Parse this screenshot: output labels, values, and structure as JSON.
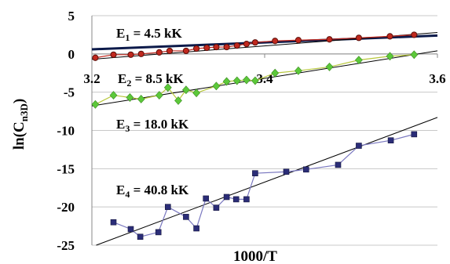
{
  "chart_data": {
    "type": "scatter",
    "xlabel": "1000/T",
    "ylabel": {
      "base": "ln(C",
      "sub": "n3D",
      "end": ")"
    },
    "xlim": [
      3.2,
      3.6
    ],
    "xticks": [
      3.2,
      3.4,
      3.6
    ],
    "ylim": [
      -25,
      5
    ],
    "yticks": [
      -25,
      -20,
      -15,
      -10,
      -5,
      0,
      5
    ],
    "grid": true,
    "series": [
      {
        "marker": "circle",
        "color": "#c0281e",
        "line_color": "#c0281e",
        "x": [
          3.204,
          3.225,
          3.245,
          3.257,
          3.278,
          3.29,
          3.309,
          3.321,
          3.333,
          3.344,
          3.356,
          3.368,
          3.379,
          3.389,
          3.412,
          3.439,
          3.475,
          3.509,
          3.545,
          3.573
        ],
        "values": [
          -0.5,
          -0.1,
          -0.1,
          0,
          0.2,
          0.4,
          0.4,
          0.7,
          0.8,
          0.9,
          0.9,
          1.1,
          1.3,
          1.5,
          1.7,
          1.8,
          1.9,
          2.1,
          2.3,
          2.5
        ]
      },
      {
        "marker": "diamond",
        "color": "#5cc83a",
        "line_color": "#b8c83c",
        "x": [
          3.204,
          3.225,
          3.244,
          3.257,
          3.278,
          3.288,
          3.3,
          3.309,
          3.321,
          3.344,
          3.356,
          3.368,
          3.379,
          3.389,
          3.412,
          3.439,
          3.475,
          3.509,
          3.545,
          3.573
        ],
        "values": [
          -6.6,
          -5.4,
          -5.7,
          -5.9,
          -5.4,
          -4.4,
          -6.1,
          -4.7,
          -5.1,
          -4.2,
          -3.6,
          -3.5,
          -3.4,
          -3.5,
          -2.5,
          -2.2,
          -1.7,
          -0.8,
          -0.3,
          -0.1
        ]
      },
      {
        "marker": "square",
        "color": "#2b2d78",
        "line_color": "#7a78c0",
        "x": [
          3.225,
          3.245,
          3.256,
          3.277,
          3.288,
          3.309,
          3.321,
          3.332,
          3.344,
          3.356,
          3.367,
          3.379,
          3.389,
          3.425,
          3.448,
          3.485,
          3.509,
          3.546,
          3.573
        ],
        "values": [
          -22,
          -22.9,
          -23.9,
          -23.3,
          -20,
          -21.3,
          -22.8,
          -18.9,
          -20.1,
          -18.7,
          -19,
          -19,
          -15.6,
          -15.4,
          -15.1,
          -14.5,
          -12,
          -11.3,
          -10.5
        ]
      }
    ],
    "fits": [
      {
        "color": "#0c1a4a",
        "width": 3,
        "x": [
          3.2,
          3.6
        ],
        "values": [
          0.6,
          2.4
        ]
      },
      {
        "color": "#000000",
        "width": 1,
        "x": [
          3.2,
          3.6
        ],
        "values": [
          -0.7,
          2.8
        ]
      },
      {
        "color": "#000000",
        "width": 1,
        "x": [
          3.2,
          3.6
        ],
        "values": [
          -6.8,
          0.4
        ]
      },
      {
        "color": "#000000",
        "width": 1,
        "x": [
          3.205,
          3.6
        ],
        "values": [
          -25,
          -8.3
        ]
      }
    ],
    "annotations": [
      {
        "base": "E",
        "sub": "1",
        "rest": " = 4.5 kK"
      },
      {
        "base": "E",
        "sub": "2",
        "rest": " = 8.5 kK"
      },
      {
        "base": "E",
        "sub": "3",
        "rest": " = 18.0 kK"
      },
      {
        "base": "E",
        "sub": "4",
        "rest": " = 40.8 kK"
      }
    ]
  }
}
